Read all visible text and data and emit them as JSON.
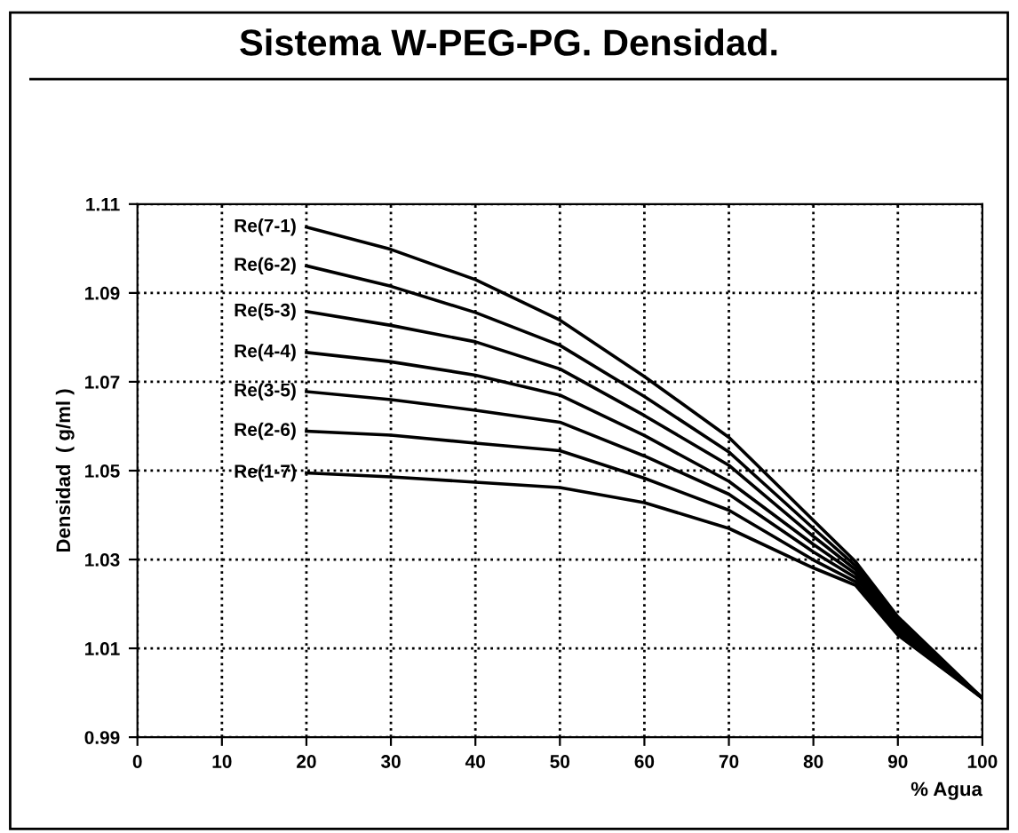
{
  "chart_data": {
    "type": "line",
    "title": "Sistema W-PEG-PG. Densidad.",
    "xlabel": "% Agua",
    "ylabel": "Densidad  ( g/ml )",
    "x": [
      20,
      30,
      40,
      50,
      60,
      70,
      80,
      85,
      90,
      100
    ],
    "series": [
      {
        "name": "Re(7-1)",
        "color": "#000000",
        "values": [
          1.1048,
          1.0998,
          1.093,
          1.0839,
          1.0712,
          1.0575,
          1.0388,
          1.0295,
          1.0171,
          0.9988
        ]
      },
      {
        "name": "Re(6-2)",
        "color": "#000000",
        "values": [
          1.0961,
          1.0915,
          1.0856,
          1.0782,
          1.0667,
          1.0542,
          1.037,
          1.0286,
          1.0164,
          0.9988
        ]
      },
      {
        "name": "Re(5-3)",
        "color": "#000000",
        "values": [
          1.0858,
          1.0827,
          1.079,
          1.0729,
          1.0624,
          1.0512,
          1.0352,
          1.0277,
          1.0157,
          0.9988
        ]
      },
      {
        "name": "Re(4-4)",
        "color": "#000000",
        "values": [
          1.0766,
          1.0745,
          1.0715,
          1.067,
          1.0579,
          1.0476,
          1.0334,
          1.0268,
          1.015,
          0.9988
        ]
      },
      {
        "name": "Re(3-5)",
        "color": "#000000",
        "values": [
          1.0678,
          1.066,
          1.0636,
          1.0609,
          1.0533,
          1.0447,
          1.0317,
          1.0259,
          1.0143,
          0.9988
        ]
      },
      {
        "name": "Re(2-6)",
        "color": "#000000",
        "values": [
          1.0589,
          1.058,
          1.0562,
          1.0545,
          1.0483,
          1.0411,
          1.0299,
          1.025,
          1.0136,
          0.9988
        ]
      },
      {
        "name": "Re(1-7)",
        "color": "#000000",
        "values": [
          1.0495,
          1.0486,
          1.0474,
          1.0462,
          1.0428,
          1.037,
          1.0281,
          1.0242,
          1.013,
          0.9988
        ]
      }
    ],
    "xlim": [
      0,
      100
    ],
    "xticks": [
      0,
      10,
      20,
      30,
      40,
      50,
      60,
      70,
      80,
      90,
      100
    ],
    "ylim": [
      0.99,
      1.11
    ],
    "yticks": [
      0.99,
      1.01,
      1.03,
      1.05,
      1.07,
      1.09,
      1.11
    ],
    "grid": true,
    "line_style": "solid",
    "marker": "none",
    "legend": false
  }
}
